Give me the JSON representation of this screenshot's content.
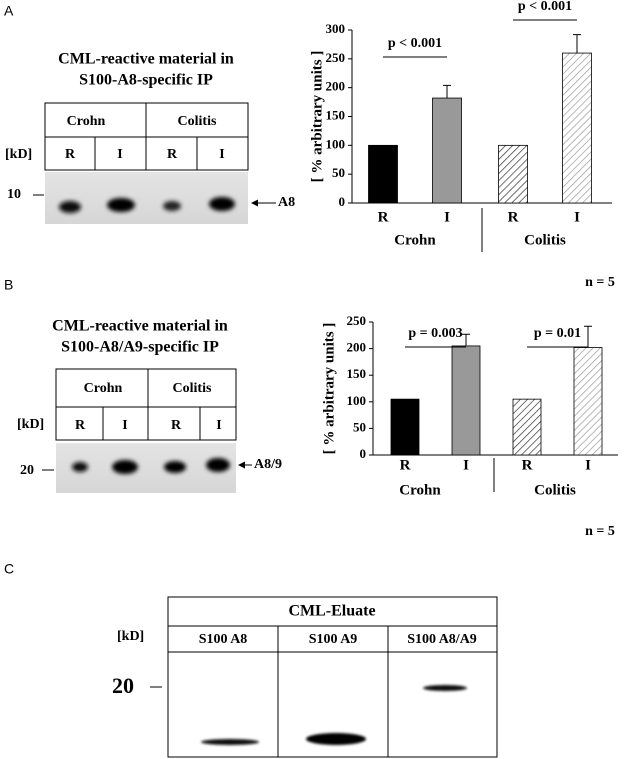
{
  "panel_labels": [
    "A",
    "B",
    "C"
  ],
  "blots": [
    {
      "title": [
        "CML-reactive material in",
        "S100-A8-specific IP"
      ],
      "conditions": [
        "Crohn",
        "Colitis"
      ],
      "lanes": [
        "R",
        "I",
        "R",
        "I"
      ],
      "unit": "[kD]",
      "marker": "10",
      "band": "A8"
    },
    {
      "title": [
        "CML-reactive material in",
        "S100-A8/A9-specific IP"
      ],
      "conditions": [
        "Crohn",
        "Colitis"
      ],
      "lanes": [
        "R",
        "I",
        "R",
        "I"
      ],
      "unit": "[kD]",
      "marker": "20",
      "band": "A8/9"
    }
  ],
  "eluate": {
    "title": "CML-Eluate",
    "unit": "[kD]",
    "marker": "20",
    "columns": [
      "S100 A8",
      "S100 A9",
      "S100 A8/A9"
    ]
  },
  "chart_data": [
    {
      "type": "bar",
      "y_label": "[ % arbitrary units ]",
      "categories": [
        "R",
        "I",
        "R",
        "I"
      ],
      "groups": [
        "Crohn",
        "Colitis"
      ],
      "values": [
        100,
        182,
        100,
        260
      ],
      "errors": [
        null,
        22,
        null,
        32
      ],
      "colors": [
        "#000000",
        "#999999",
        "#333333",
        "#999999"
      ],
      "hatch": [
        false,
        false,
        true,
        true
      ],
      "ylim": [
        0,
        300
      ],
      "yticks": [
        0,
        50,
        100,
        150,
        200,
        250,
        300
      ],
      "annotations": [
        "p < 0.001",
        "p < 0.001"
      ],
      "note": "n = 5"
    },
    {
      "type": "bar",
      "y_label": "[ % arbitrary units ]",
      "categories": [
        "R",
        "I",
        "R",
        "I"
      ],
      "groups": [
        "Crohn",
        "Colitis"
      ],
      "values": [
        105,
        205,
        105,
        202
      ],
      "errors": [
        null,
        22,
        null,
        40
      ],
      "colors": [
        "#000000",
        "#999999",
        "#333333",
        "#999999"
      ],
      "hatch": [
        false,
        false,
        true,
        true
      ],
      "ylim": [
        0,
        250
      ],
      "yticks": [
        0,
        50,
        100,
        150,
        200,
        250
      ],
      "annotations": [
        "p = 0.003",
        "p = 0.01"
      ],
      "note": "n = 5"
    }
  ]
}
